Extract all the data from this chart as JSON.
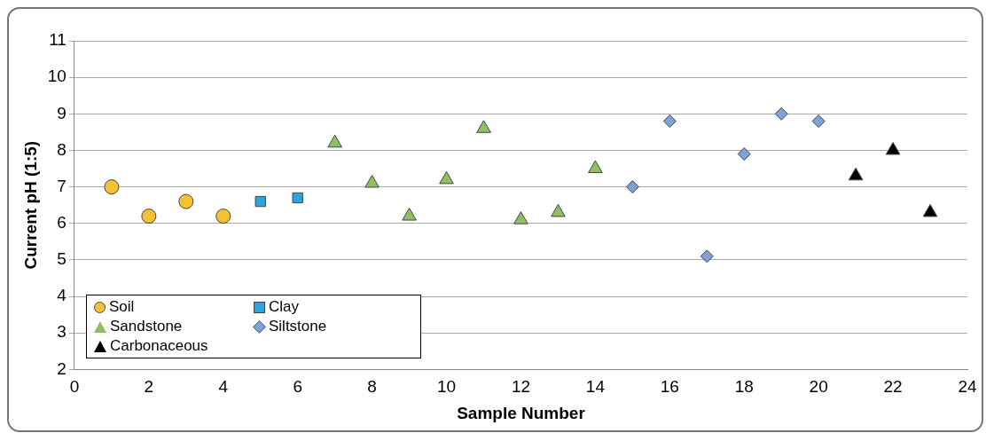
{
  "chart_data": {
    "type": "scatter",
    "xlabel": "Sample Number",
    "ylabel": "Current pH (1:5)",
    "xlim": [
      0,
      24
    ],
    "xticks": [
      0,
      2,
      4,
      6,
      8,
      10,
      12,
      14,
      16,
      18,
      20,
      22,
      24
    ],
    "ylim": [
      2,
      11
    ],
    "yticks": [
      2,
      3,
      4,
      5,
      6,
      7,
      8,
      9,
      10,
      11
    ],
    "grid": "y",
    "legend": "bottom left",
    "series": [
      {
        "name": "Soil",
        "color": "#f7c136",
        "marker": "circle",
        "x": [
          1,
          2,
          3,
          4
        ],
        "values": [
          7.0,
          6.2,
          6.6,
          6.2
        ]
      },
      {
        "name": "Clay",
        "color": "#29a6dc",
        "marker": "square",
        "x": [
          5,
          6
        ],
        "values": [
          6.6,
          6.7
        ]
      },
      {
        "name": "Sandstone",
        "color": "#8cc063",
        "marker": "triangle",
        "x": [
          7,
          8,
          9,
          10,
          11,
          12,
          13,
          14
        ],
        "values": [
          8.2,
          7.1,
          6.2,
          7.2,
          8.6,
          6.1,
          6.3,
          7.5
        ]
      },
      {
        "name": "Siltstone",
        "color": "#7da2d8",
        "marker": "diamond",
        "x": [
          15,
          16,
          17,
          18,
          19,
          20
        ],
        "values": [
          7.0,
          8.8,
          5.1,
          7.9,
          9.0,
          8.8
        ]
      },
      {
        "name": "Carbonaceous",
        "color": "#000000",
        "marker": "triangle",
        "x": [
          21,
          22,
          23
        ],
        "values": [
          7.3,
          8.0,
          6.3
        ]
      }
    ]
  }
}
